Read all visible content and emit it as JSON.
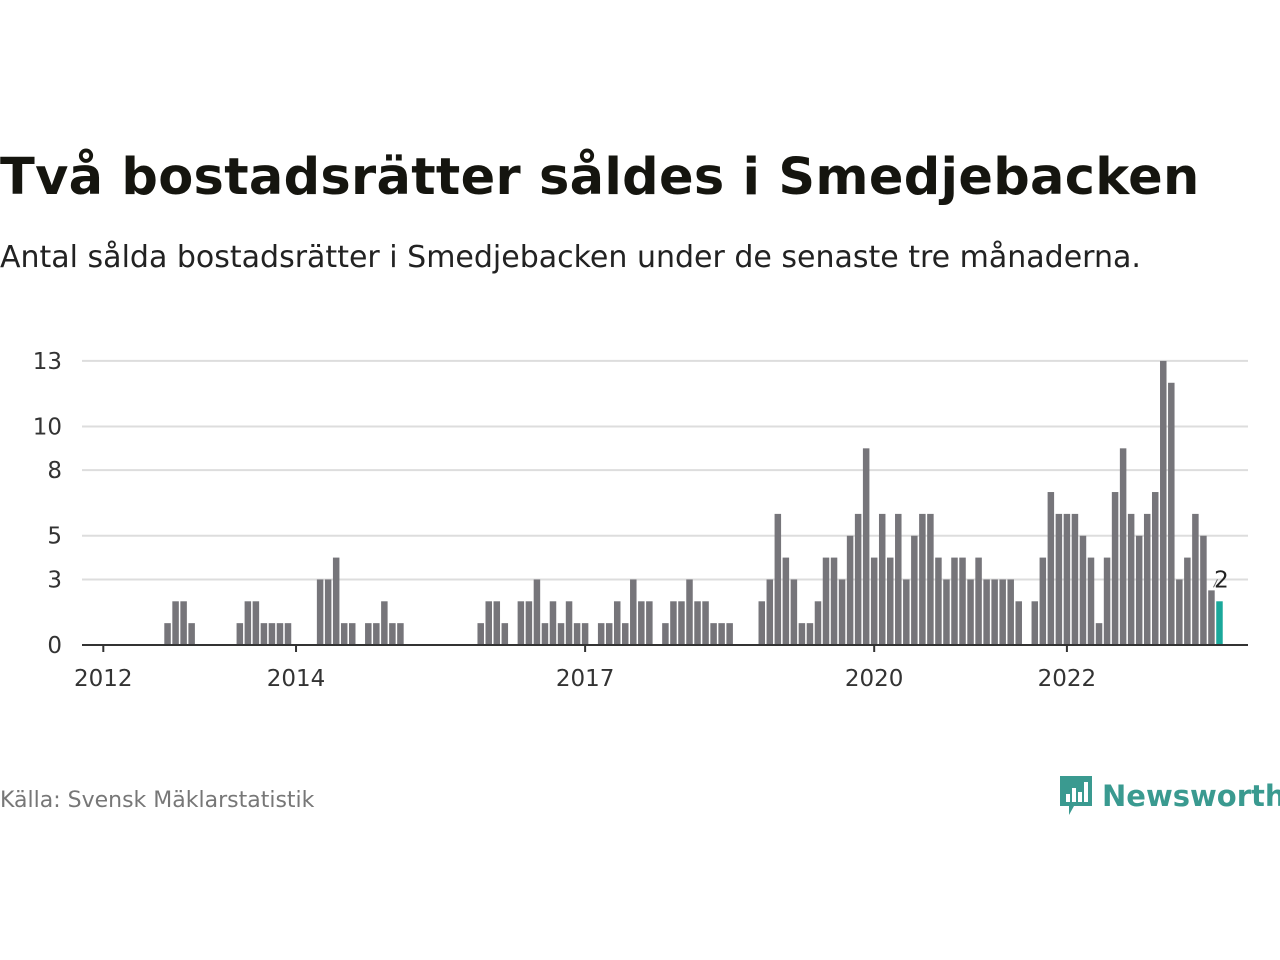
{
  "title": "Två bostadsrätter såldes i Smedjebacken",
  "subtitle": "Antal sålda bostadsrätter i Smedjebacken under de senaste tre månaderna.",
  "source": "Källa: Svensk Mäklarstatistik",
  "brand": {
    "name": "Newsworthy",
    "icon": "bar-chart-speech-bubble-icon",
    "color": "#3a9a90"
  },
  "colors": {
    "bar": "#76757a",
    "highlight": "#1aa89b",
    "grid": "#dddddd",
    "axis": "#333333"
  },
  "chart_data": {
    "type": "bar",
    "x_start": "2011-08",
    "x_interval": "quarter",
    "ylim": [
      0,
      13.5
    ],
    "y_ticks": [
      0,
      3,
      5,
      8,
      10,
      13
    ],
    "x_ticks": [
      {
        "label": "2012",
        "index": 2
      },
      {
        "label": "2014",
        "index": 26
      },
      {
        "label": "2017",
        "index": 62
      },
      {
        "label": "2020",
        "index": 98
      },
      {
        "label": "2022",
        "index": 122
      }
    ],
    "values": [
      0,
      0,
      0,
      0,
      0,
      0,
      0,
      0,
      0,
      0,
      1,
      2,
      2,
      1,
      0,
      0,
      0,
      0,
      0,
      1,
      2,
      2,
      1,
      1,
      1,
      1,
      0,
      0,
      0,
      3,
      3,
      4,
      1,
      1,
      0,
      1,
      1,
      2,
      1,
      1,
      0,
      0,
      0,
      0,
      0,
      0,
      0,
      0,
      0,
      1,
      2,
      2,
      1,
      0,
      2,
      2,
      3,
      1,
      2,
      1,
      2,
      1,
      1,
      0,
      1,
      1,
      2,
      1,
      3,
      2,
      2,
      0,
      1,
      2,
      2,
      3,
      2,
      2,
      1,
      1,
      1,
      0,
      0,
      0,
      2,
      3,
      6,
      4,
      3,
      1,
      1,
      2,
      4,
      4,
      3,
      5,
      6,
      9,
      4,
      6,
      4,
      6,
      3,
      5,
      6,
      6,
      4,
      3,
      4,
      4,
      3,
      4,
      3,
      3,
      3,
      3,
      2,
      0,
      2,
      4,
      7,
      6,
      6,
      6,
      5,
      4,
      1,
      4,
      7,
      9,
      6,
      5,
      6,
      7,
      13,
      12,
      3,
      4,
      6,
      5,
      2.5,
      2
    ],
    "highlight_last": true,
    "last_label": "2"
  }
}
